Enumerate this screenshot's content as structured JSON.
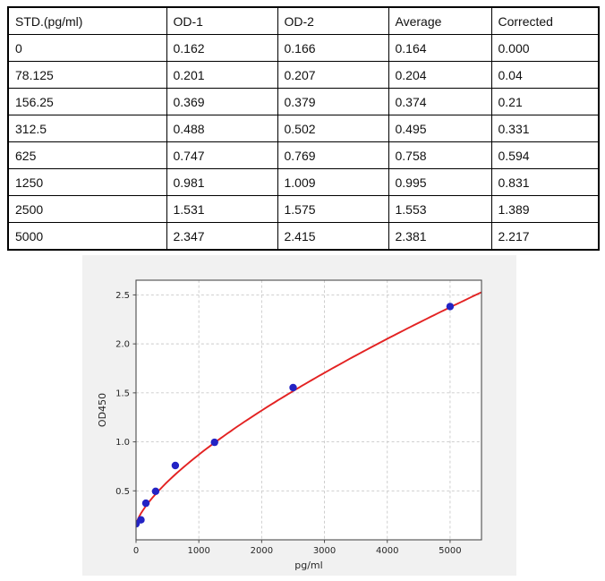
{
  "table": {
    "headers": [
      "STD.(pg/ml)",
      "OD-1",
      "OD-2",
      "Average",
      "Corrected"
    ],
    "rows": [
      [
        "0",
        "0.162",
        "0.166",
        "0.164",
        "0.000"
      ],
      [
        "78.125",
        "0.201",
        "0.207",
        "0.204",
        "0.04"
      ],
      [
        "156.25",
        "0.369",
        "0.379",
        "0.374",
        "0.21"
      ],
      [
        "312.5",
        "0.488",
        "0.502",
        "0.495",
        "0.331"
      ],
      [
        "625",
        "0.747",
        "0.769",
        "0.758",
        "0.594"
      ],
      [
        "1250",
        "0.981",
        "1.009",
        "0.995",
        "0.831"
      ],
      [
        "2500",
        "1.531",
        "1.575",
        "1.553",
        "1.389"
      ],
      [
        "5000",
        "2.347",
        "2.415",
        "2.381",
        "2.217"
      ]
    ]
  },
  "chart_data": {
    "type": "scatter",
    "title": "",
    "xlabel": "pg/ml",
    "ylabel": "OD450",
    "xlim": [
      0,
      5500
    ],
    "ylim": [
      0,
      2.65
    ],
    "x_ticks": [
      0,
      1000,
      2000,
      3000,
      4000,
      5000
    ],
    "x_tick_labels": [
      "0",
      "1000",
      "2000",
      "3000",
      "4000",
      "5000"
    ],
    "y_ticks": [
      0.5,
      1.0,
      1.5,
      2.0,
      2.5
    ],
    "y_tick_labels": [
      "0.5",
      "1.0",
      "1.5",
      "2.0",
      "2.5"
    ],
    "grid": "dashed",
    "legend": "none",
    "points": {
      "x": [
        0,
        78.125,
        156.25,
        312.5,
        625,
        1250,
        2500,
        5000
      ],
      "y": [
        0.164,
        0.204,
        0.374,
        0.495,
        0.758,
        0.995,
        1.553,
        2.381
      ]
    },
    "curve_fit": {
      "model": "power",
      "y0": 0.148,
      "a": 0.00573,
      "b": 0.7
    },
    "colors": {
      "point": "#2323c4",
      "curve": "#e32222",
      "grid": "#c9c9c9",
      "spine": "#4d4d4d",
      "figure_bg": "#f1f1f1",
      "plot_bg": "#ffffff",
      "text": "#262626"
    }
  }
}
